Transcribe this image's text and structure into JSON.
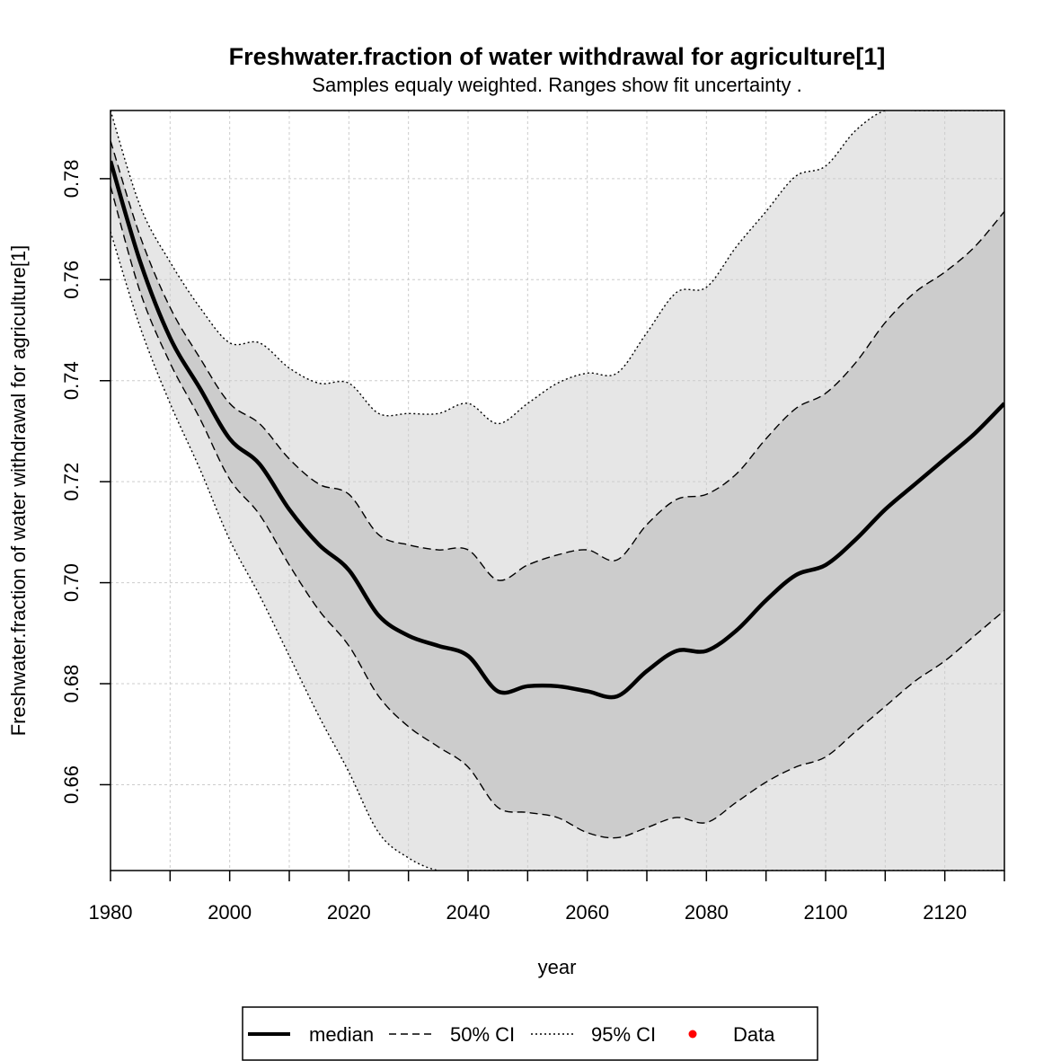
{
  "chart_data": {
    "type": "line",
    "title": "Freshwater.fraction of water withdrawal for agriculture[1]",
    "subtitle": "Samples equaly weighted. Ranges show  fit uncertainty .",
    "xlabel": "year",
    "ylabel": "Freshwater.fraction of water withdrawal for agriculture[1]",
    "xlim": [
      1980,
      2130
    ],
    "ylim": [
      0.643,
      0.7935
    ],
    "x_ticks": [
      1980,
      2000,
      2020,
      2040,
      2060,
      2080,
      2100,
      2120
    ],
    "y_ticks": [
      0.66,
      0.68,
      0.7,
      0.72,
      0.74,
      0.76,
      0.78
    ],
    "x_tick_labels": [
      "1980",
      "2000",
      "2020",
      "2040",
      "2060",
      "2080",
      "2100",
      "2120"
    ],
    "y_tick_labels": [
      "0.66",
      "0.68",
      "0.70",
      "0.72",
      "0.74",
      "0.76",
      "0.78"
    ],
    "grid": true,
    "x": [
      1980,
      1985,
      1990,
      1995,
      2000,
      2005,
      2010,
      2015,
      2020,
      2025,
      2030,
      2035,
      2040,
      2045,
      2050,
      2055,
      2060,
      2065,
      2070,
      2075,
      2080,
      2085,
      2090,
      2095,
      2100,
      2105,
      2110,
      2115,
      2120,
      2125,
      2130
    ],
    "median": [
      0.7835,
      0.7635,
      0.7485,
      0.7385,
      0.7285,
      0.7235,
      0.7145,
      0.7075,
      0.7025,
      0.6935,
      0.6895,
      0.6875,
      0.6855,
      0.6785,
      0.6795,
      0.6795,
      0.6785,
      0.6775,
      0.6825,
      0.6865,
      0.6865,
      0.6905,
      0.6965,
      0.7015,
      0.7035,
      0.7085,
      0.7145,
      0.7195,
      0.7245,
      0.7295,
      0.7355
    ],
    "ci50_upper": [
      0.7875,
      0.7685,
      0.7545,
      0.7445,
      0.7355,
      0.7315,
      0.7245,
      0.7195,
      0.7175,
      0.7095,
      0.7075,
      0.7065,
      0.7065,
      0.7005,
      0.7035,
      0.7055,
      0.7065,
      0.7045,
      0.7115,
      0.7165,
      0.7175,
      0.7215,
      0.7285,
      0.7345,
      0.7375,
      0.7435,
      0.7515,
      0.7575,
      0.7615,
      0.7665,
      0.7735
    ],
    "ci50_lower": [
      0.7785,
      0.7575,
      0.7435,
      0.7325,
      0.7205,
      0.7135,
      0.7035,
      0.6945,
      0.6875,
      0.6775,
      0.6715,
      0.6675,
      0.6635,
      0.6555,
      0.6545,
      0.6535,
      0.6505,
      0.6495,
      0.6515,
      0.6535,
      0.6525,
      0.6565,
      0.6605,
      0.6635,
      0.6655,
      0.6705,
      0.6755,
      0.6805,
      0.6845,
      0.6895,
      0.6945
    ],
    "ci95_upper": [
      0.7935,
      0.7745,
      0.7635,
      0.7545,
      0.7475,
      0.7475,
      0.7425,
      0.7395,
      0.7395,
      0.7335,
      0.7335,
      0.7335,
      0.7355,
      0.7315,
      0.7355,
      0.7395,
      0.7415,
      0.7415,
      0.7495,
      0.7575,
      0.7585,
      0.7665,
      0.7735,
      0.7805,
      0.7825,
      0.7895,
      0.7935,
      0.7935,
      0.7935,
      0.7935,
      0.7935
    ],
    "ci95_lower": [
      0.7695,
      0.7505,
      0.7355,
      0.7225,
      0.7085,
      0.6975,
      0.6855,
      0.6735,
      0.6625,
      0.6505,
      0.6455,
      0.643,
      0.643,
      0.643,
      0.643,
      0.643,
      0.643,
      0.643,
      0.643,
      0.643,
      0.643,
      0.643,
      0.643,
      0.643,
      0.643,
      0.643,
      0.643,
      0.643,
      0.643,
      0.643,
      0.643
    ],
    "legend": {
      "position": "bottom",
      "entries": [
        "median",
        "50% CI",
        "95% CI",
        "Data"
      ]
    },
    "colors": {
      "band95": "#e6e6e6",
      "band50": "#cccccc",
      "median": "#000000",
      "data_point": "#ff0000",
      "grid": "#cccccc"
    }
  }
}
